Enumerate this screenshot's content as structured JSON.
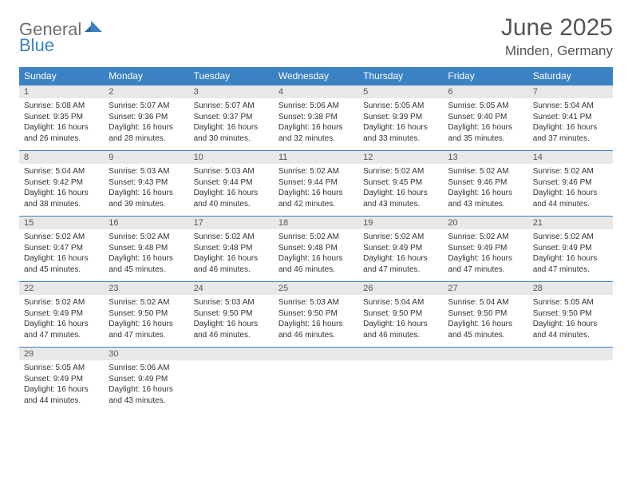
{
  "brand": {
    "part1": "General",
    "part2": "Blue"
  },
  "title": "June 2025",
  "location": "Minden, Germany",
  "colors": {
    "header_bg": "#3b82c4",
    "header_text": "#ffffff",
    "daynum_bg": "#e8e8e8",
    "text": "#333333",
    "title_text": "#555555",
    "row_border": "#3b82c4"
  },
  "day_headers": [
    "Sunday",
    "Monday",
    "Tuesday",
    "Wednesday",
    "Thursday",
    "Friday",
    "Saturday"
  ],
  "weeks": [
    [
      {
        "num": "1",
        "sunrise": "Sunrise: 5:08 AM",
        "sunset": "Sunset: 9:35 PM",
        "daylight1": "Daylight: 16 hours",
        "daylight2": "and 26 minutes."
      },
      {
        "num": "2",
        "sunrise": "Sunrise: 5:07 AM",
        "sunset": "Sunset: 9:36 PM",
        "daylight1": "Daylight: 16 hours",
        "daylight2": "and 28 minutes."
      },
      {
        "num": "3",
        "sunrise": "Sunrise: 5:07 AM",
        "sunset": "Sunset: 9:37 PM",
        "daylight1": "Daylight: 16 hours",
        "daylight2": "and 30 minutes."
      },
      {
        "num": "4",
        "sunrise": "Sunrise: 5:06 AM",
        "sunset": "Sunset: 9:38 PM",
        "daylight1": "Daylight: 16 hours",
        "daylight2": "and 32 minutes."
      },
      {
        "num": "5",
        "sunrise": "Sunrise: 5:05 AM",
        "sunset": "Sunset: 9:39 PM",
        "daylight1": "Daylight: 16 hours",
        "daylight2": "and 33 minutes."
      },
      {
        "num": "6",
        "sunrise": "Sunrise: 5:05 AM",
        "sunset": "Sunset: 9:40 PM",
        "daylight1": "Daylight: 16 hours",
        "daylight2": "and 35 minutes."
      },
      {
        "num": "7",
        "sunrise": "Sunrise: 5:04 AM",
        "sunset": "Sunset: 9:41 PM",
        "daylight1": "Daylight: 16 hours",
        "daylight2": "and 37 minutes."
      }
    ],
    [
      {
        "num": "8",
        "sunrise": "Sunrise: 5:04 AM",
        "sunset": "Sunset: 9:42 PM",
        "daylight1": "Daylight: 16 hours",
        "daylight2": "and 38 minutes."
      },
      {
        "num": "9",
        "sunrise": "Sunrise: 5:03 AM",
        "sunset": "Sunset: 9:43 PM",
        "daylight1": "Daylight: 16 hours",
        "daylight2": "and 39 minutes."
      },
      {
        "num": "10",
        "sunrise": "Sunrise: 5:03 AM",
        "sunset": "Sunset: 9:44 PM",
        "daylight1": "Daylight: 16 hours",
        "daylight2": "and 40 minutes."
      },
      {
        "num": "11",
        "sunrise": "Sunrise: 5:02 AM",
        "sunset": "Sunset: 9:44 PM",
        "daylight1": "Daylight: 16 hours",
        "daylight2": "and 42 minutes."
      },
      {
        "num": "12",
        "sunrise": "Sunrise: 5:02 AM",
        "sunset": "Sunset: 9:45 PM",
        "daylight1": "Daylight: 16 hours",
        "daylight2": "and 43 minutes."
      },
      {
        "num": "13",
        "sunrise": "Sunrise: 5:02 AM",
        "sunset": "Sunset: 9:46 PM",
        "daylight1": "Daylight: 16 hours",
        "daylight2": "and 43 minutes."
      },
      {
        "num": "14",
        "sunrise": "Sunrise: 5:02 AM",
        "sunset": "Sunset: 9:46 PM",
        "daylight1": "Daylight: 16 hours",
        "daylight2": "and 44 minutes."
      }
    ],
    [
      {
        "num": "15",
        "sunrise": "Sunrise: 5:02 AM",
        "sunset": "Sunset: 9:47 PM",
        "daylight1": "Daylight: 16 hours",
        "daylight2": "and 45 minutes."
      },
      {
        "num": "16",
        "sunrise": "Sunrise: 5:02 AM",
        "sunset": "Sunset: 9:48 PM",
        "daylight1": "Daylight: 16 hours",
        "daylight2": "and 45 minutes."
      },
      {
        "num": "17",
        "sunrise": "Sunrise: 5:02 AM",
        "sunset": "Sunset: 9:48 PM",
        "daylight1": "Daylight: 16 hours",
        "daylight2": "and 46 minutes."
      },
      {
        "num": "18",
        "sunrise": "Sunrise: 5:02 AM",
        "sunset": "Sunset: 9:48 PM",
        "daylight1": "Daylight: 16 hours",
        "daylight2": "and 46 minutes."
      },
      {
        "num": "19",
        "sunrise": "Sunrise: 5:02 AM",
        "sunset": "Sunset: 9:49 PM",
        "daylight1": "Daylight: 16 hours",
        "daylight2": "and 47 minutes."
      },
      {
        "num": "20",
        "sunrise": "Sunrise: 5:02 AM",
        "sunset": "Sunset: 9:49 PM",
        "daylight1": "Daylight: 16 hours",
        "daylight2": "and 47 minutes."
      },
      {
        "num": "21",
        "sunrise": "Sunrise: 5:02 AM",
        "sunset": "Sunset: 9:49 PM",
        "daylight1": "Daylight: 16 hours",
        "daylight2": "and 47 minutes."
      }
    ],
    [
      {
        "num": "22",
        "sunrise": "Sunrise: 5:02 AM",
        "sunset": "Sunset: 9:49 PM",
        "daylight1": "Daylight: 16 hours",
        "daylight2": "and 47 minutes."
      },
      {
        "num": "23",
        "sunrise": "Sunrise: 5:02 AM",
        "sunset": "Sunset: 9:50 PM",
        "daylight1": "Daylight: 16 hours",
        "daylight2": "and 47 minutes."
      },
      {
        "num": "24",
        "sunrise": "Sunrise: 5:03 AM",
        "sunset": "Sunset: 9:50 PM",
        "daylight1": "Daylight: 16 hours",
        "daylight2": "and 46 minutes."
      },
      {
        "num": "25",
        "sunrise": "Sunrise: 5:03 AM",
        "sunset": "Sunset: 9:50 PM",
        "daylight1": "Daylight: 16 hours",
        "daylight2": "and 46 minutes."
      },
      {
        "num": "26",
        "sunrise": "Sunrise: 5:04 AM",
        "sunset": "Sunset: 9:50 PM",
        "daylight1": "Daylight: 16 hours",
        "daylight2": "and 46 minutes."
      },
      {
        "num": "27",
        "sunrise": "Sunrise: 5:04 AM",
        "sunset": "Sunset: 9:50 PM",
        "daylight1": "Daylight: 16 hours",
        "daylight2": "and 45 minutes."
      },
      {
        "num": "28",
        "sunrise": "Sunrise: 5:05 AM",
        "sunset": "Sunset: 9:50 PM",
        "daylight1": "Daylight: 16 hours",
        "daylight2": "and 44 minutes."
      }
    ],
    [
      {
        "num": "29",
        "sunrise": "Sunrise: 5:05 AM",
        "sunset": "Sunset: 9:49 PM",
        "daylight1": "Daylight: 16 hours",
        "daylight2": "and 44 minutes."
      },
      {
        "num": "30",
        "sunrise": "Sunrise: 5:06 AM",
        "sunset": "Sunset: 9:49 PM",
        "daylight1": "Daylight: 16 hours",
        "daylight2": "and 43 minutes."
      },
      null,
      null,
      null,
      null,
      null
    ]
  ]
}
